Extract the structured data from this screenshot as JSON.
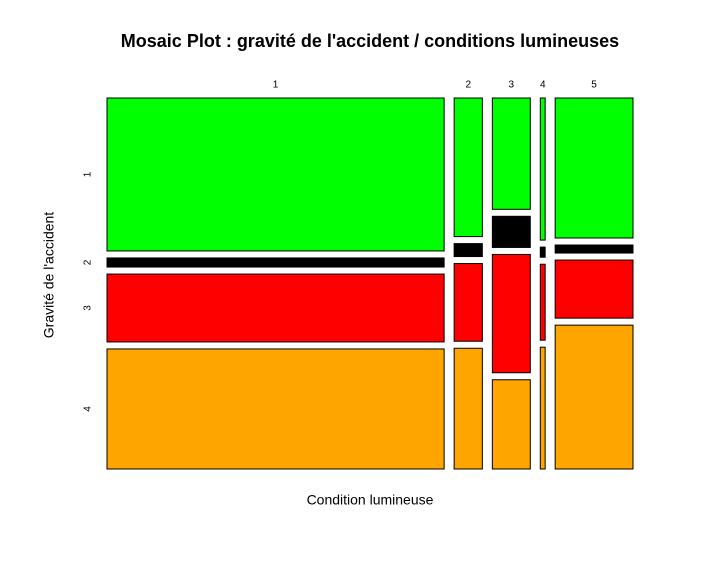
{
  "chart_data": {
    "type": "mosaic",
    "title": "Mosaic Plot : gravité de l'accident / conditions lumineuses",
    "x_label": "Condition lumineuse",
    "y_label": "Gravité de l'accident",
    "categories": [
      "1",
      "2",
      "3",
      "4",
      "5"
    ],
    "column_widths": [
      69.3,
      5.8,
      7.8,
      1.0,
      16.0
    ],
    "series": [
      {
        "name": "1",
        "color": "#00ff00",
        "values": [
          43.7,
          39.6,
          31.8,
          40.6,
          40.0
        ]
      },
      {
        "name": "2",
        "color": "#000000",
        "values": [
          2.6,
          3.7,
          8.9,
          2.9,
          2.3
        ]
      },
      {
        "name": "3",
        "color": "#ff0000",
        "values": [
          19.4,
          22.2,
          33.8,
          21.7,
          16.6
        ]
      },
      {
        "name": "4",
        "color": "#ffa500",
        "values": [
          34.3,
          34.5,
          25.5,
          34.8,
          41.1
        ]
      }
    ]
  }
}
